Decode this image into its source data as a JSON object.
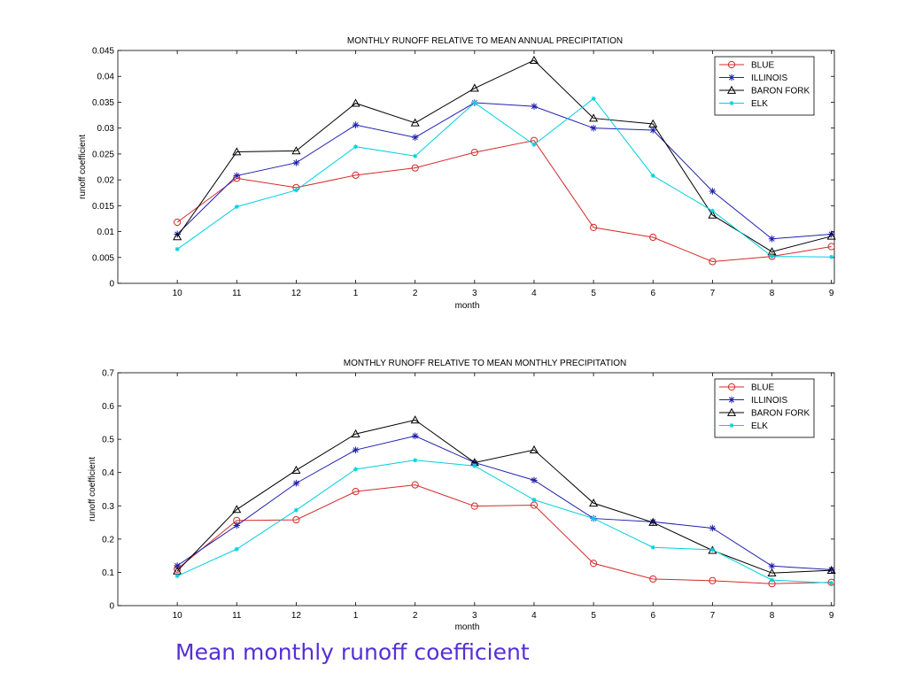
{
  "caption": "Mean monthly runoff coefficient",
  "chart_data": [
    {
      "type": "line",
      "title": "MONTHLY RUNOFF RELATIVE TO MEAN ANNUAL PRECIPITATION",
      "xlabel": "month",
      "ylabel": "runoff coefficient",
      "categories": [
        "10",
        "11",
        "12",
        "1",
        "2",
        "3",
        "4",
        "5",
        "6",
        "7",
        "8",
        "9"
      ],
      "ylim": [
        0,
        0.045
      ],
      "yticks": [
        "0",
        "0.005",
        "0.01",
        "0.015",
        "0.02",
        "0.025",
        "0.03",
        "0.035",
        "0.04",
        "0.045"
      ],
      "legend_position": "top-right",
      "series": [
        {
          "name": "BLUE",
          "color": "#d62a2a",
          "marker": "circle",
          "values": [
            0.0118,
            0.0203,
            0.0185,
            0.0209,
            0.0223,
            0.0253,
            0.0276,
            0.0108,
            0.0089,
            0.0042,
            0.0052,
            0.0071
          ]
        },
        {
          "name": "ILLINOIS",
          "color": "#2020b0",
          "marker": "star",
          "values": [
            0.0095,
            0.0208,
            0.0233,
            0.0306,
            0.0282,
            0.0349,
            0.0342,
            0.03,
            0.0296,
            0.0178,
            0.0086,
            0.0095
          ]
        },
        {
          "name": "BARON FORK",
          "color": "#000000",
          "marker": "triangle",
          "values": [
            0.009,
            0.0254,
            0.0256,
            0.0348,
            0.031,
            0.0377,
            0.0431,
            0.0319,
            0.0308,
            0.0132,
            0.0061,
            0.0091
          ]
        },
        {
          "name": "ELK",
          "color": "#00d0e0",
          "marker": "dot",
          "values": [
            0.0066,
            0.0148,
            0.018,
            0.0264,
            0.0246,
            0.0349,
            0.0268,
            0.0357,
            0.0208,
            0.014,
            0.0052,
            0.0051
          ]
        }
      ]
    },
    {
      "type": "line",
      "title": "MONTHLY RUNOFF RELATIVE TO MEAN MONTHLY PRECIPITATION",
      "xlabel": "month",
      "ylabel": "runoff coefficient",
      "categories": [
        "10",
        "11",
        "12",
        "1",
        "2",
        "3",
        "4",
        "5",
        "6",
        "7",
        "8",
        "9"
      ],
      "ylim": [
        0,
        0.7
      ],
      "yticks": [
        "0",
        "0.1",
        "0.2",
        "0.3",
        "0.4",
        "0.5",
        "0.6",
        "0.7"
      ],
      "legend_position": "top-right",
      "series": [
        {
          "name": "BLUE",
          "color": "#d62a2a",
          "marker": "circle",
          "values": [
            0.11,
            0.256,
            0.258,
            0.343,
            0.363,
            0.299,
            0.302,
            0.127,
            0.08,
            0.075,
            0.066,
            0.07
          ]
        },
        {
          "name": "ILLINOIS",
          "color": "#2020b0",
          "marker": "star",
          "values": [
            0.12,
            0.241,
            0.368,
            0.468,
            0.51,
            0.43,
            0.377,
            0.262,
            0.252,
            0.233,
            0.119,
            0.108
          ]
        },
        {
          "name": "BARON FORK",
          "color": "#000000",
          "marker": "triangle",
          "values": [
            0.104,
            0.289,
            0.407,
            0.516,
            0.558,
            0.43,
            0.468,
            0.308,
            0.25,
            0.166,
            0.098,
            0.106
          ]
        },
        {
          "name": "ELK",
          "color": "#00d0e0",
          "marker": "dot",
          "values": [
            0.089,
            0.17,
            0.287,
            0.41,
            0.437,
            0.42,
            0.318,
            0.262,
            0.175,
            0.168,
            0.077,
            0.068
          ]
        }
      ]
    }
  ]
}
